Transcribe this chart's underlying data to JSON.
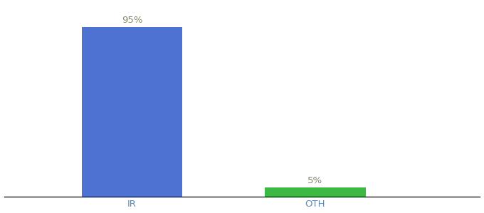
{
  "categories": [
    "IR",
    "OTH"
  ],
  "values": [
    95,
    5
  ],
  "bar_colors": [
    "#4d72d1",
    "#3cb843"
  ],
  "label_texts": [
    "95%",
    "5%"
  ],
  "background_color": "#ffffff",
  "ylim": [
    0,
    108
  ],
  "bar_width": 0.55,
  "label_fontsize": 9.5,
  "tick_fontsize": 9.5,
  "label_color": "#888866",
  "tick_color": "#6688aa",
  "spine_color": "#222222",
  "x_positions": [
    1.0,
    2.0
  ],
  "xlim": [
    0.3,
    2.9
  ]
}
